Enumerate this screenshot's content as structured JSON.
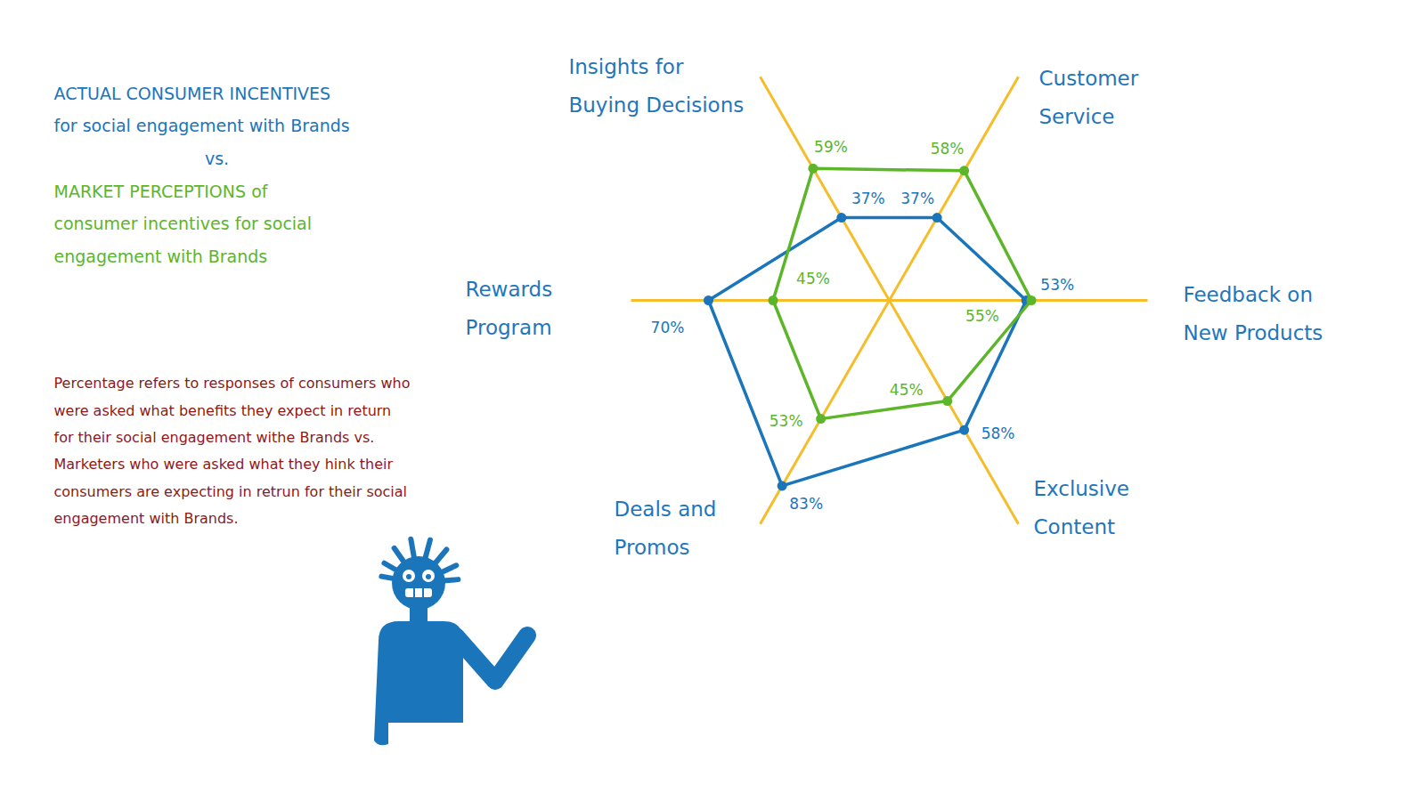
{
  "chart_data": {
    "type": "radar",
    "categories": [
      "Insights for\nBuying Decisions",
      "Customer\nService",
      "Feedback on\nNew Products",
      "Exclusive\nContent",
      "Deals and\nPromos",
      "Rewards\nProgram"
    ],
    "series": [
      {
        "name": "ACTUAL CONSUMER INCENTIVES\nfor social engagement with Brands",
        "color": "#1a75bb",
        "values": [
          37,
          37,
          53,
          58,
          83,
          70
        ],
        "value_labels": [
          "37%",
          "37%",
          "53%",
          "58%",
          "83%",
          "70%"
        ]
      },
      {
        "name": "MARKET PERCEPTIONS of\nconsumer incentives for social\nengagement with Brands",
        "color": "#5db52a",
        "values": [
          59,
          58,
          55,
          45,
          53,
          45
        ],
        "value_labels": [
          "59%",
          "58%",
          "55%",
          "45%",
          "53%",
          "45%"
        ]
      }
    ],
    "ylim": [
      0,
      100
    ],
    "tick_labels": false,
    "data_labels": true,
    "legend": "top-left",
    "annotations": [
      "vs.",
      "Percentage refers to responses of consumers who\nwere asked what benefits they expect in return\nfor their social engagement withe Brands vs.\nMarketers who were asked what they hink their\nconsumers are expecting in retrun for their social\nengagement with Brands."
    ]
  }
}
